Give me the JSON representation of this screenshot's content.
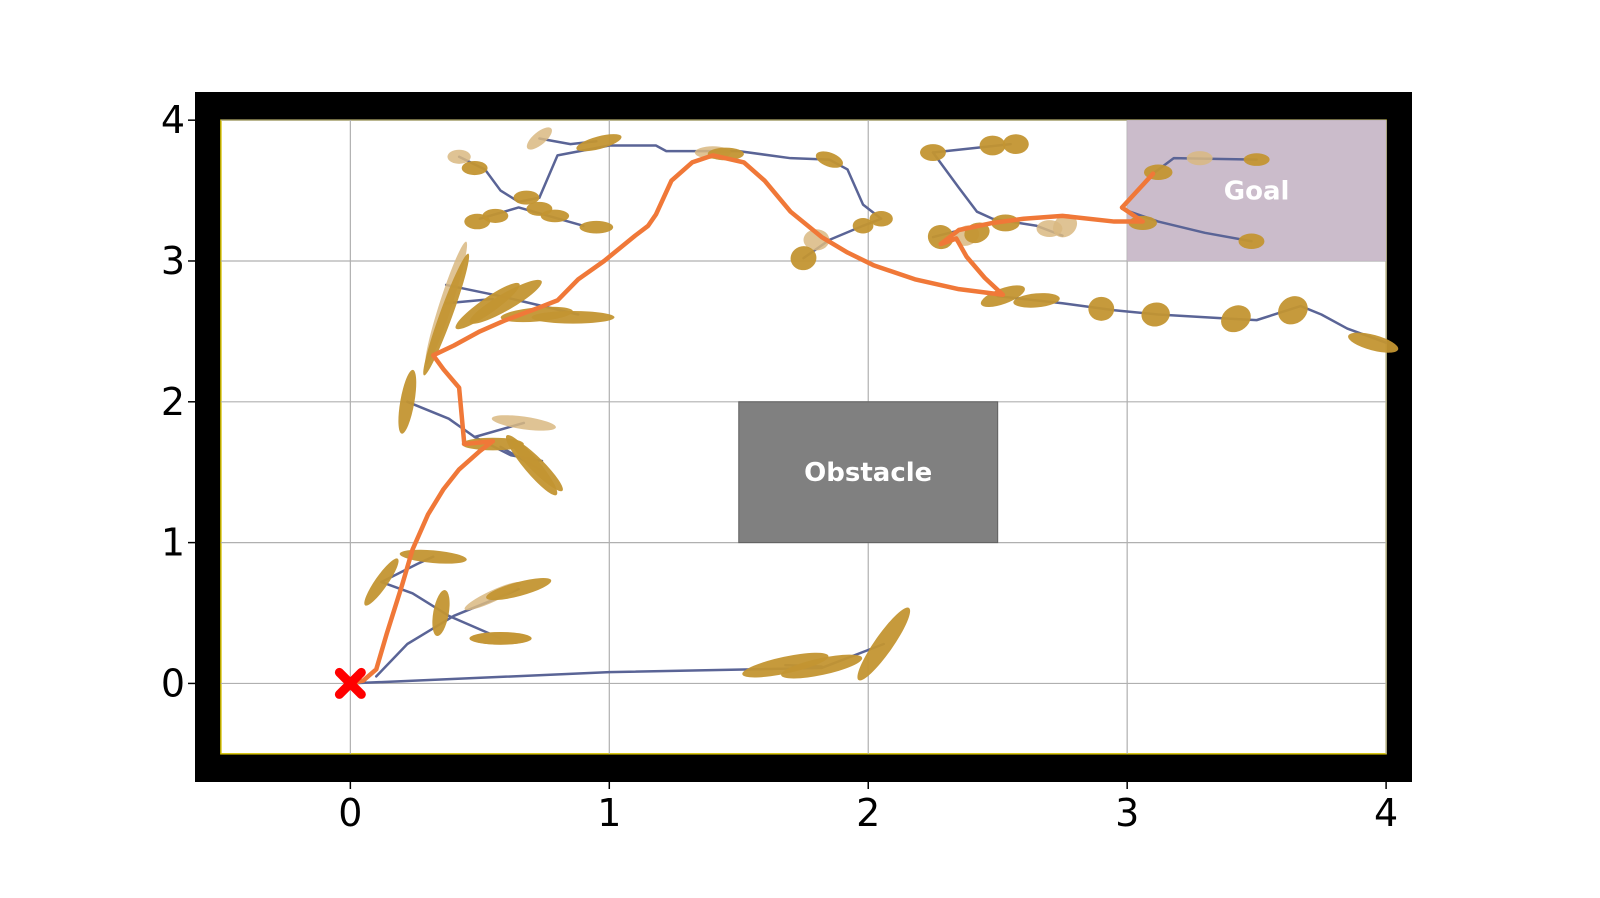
{
  "chart_data": {
    "type": "scatter",
    "title": "",
    "xlabel": "",
    "ylabel": "",
    "xlim": [
      -0.6,
      4.1
    ],
    "ylim": [
      -0.7,
      4.2
    ],
    "field_xlim": [
      -0.5,
      4.0
    ],
    "field_ylim": [
      -0.5,
      4.0
    ],
    "grid": true,
    "x_ticks": [
      0,
      1,
      2,
      3,
      4
    ],
    "y_ticks": [
      0,
      1,
      2,
      3,
      4
    ],
    "x_tick_labels": [
      "0",
      "1",
      "2",
      "3",
      "4"
    ],
    "y_tick_labels": [
      "0",
      "1",
      "2",
      "3",
      "4"
    ],
    "colors": {
      "border": "#000000",
      "field_edge": "#d4c000",
      "grid": "#b0b0b0",
      "tree_edge": "#5a6496",
      "path": "#f07838",
      "node": "#c39532",
      "node_light": "#d9b981",
      "start": "#ff0000",
      "obstacle": "#808080",
      "goal": "#c8b8c8"
    },
    "regions": [
      {
        "name": "obstacle",
        "label": "Obstacle",
        "x": [
          1.5,
          2.5
        ],
        "y": [
          1.0,
          2.0
        ]
      },
      {
        "name": "goal",
        "label": "Goal",
        "x": [
          3.0,
          4.0
        ],
        "y": [
          3.0,
          4.0
        ]
      }
    ],
    "start": {
      "x": 0,
      "y": 0,
      "marker": "X"
    },
    "tree_edges": [
      [
        [
          0.0,
          0.0
        ],
        [
          1.0,
          0.08
        ],
        [
          1.82,
          0.11
        ],
        [
          2.06,
          0.28
        ]
      ],
      [
        [
          1.68,
          0.13
        ],
        [
          1.82,
          0.12
        ]
      ],
      [
        [
          0.1,
          0.05
        ],
        [
          0.22,
          0.28
        ],
        [
          0.4,
          0.48
        ],
        [
          0.56,
          0.6
        ],
        [
          0.65,
          0.67
        ]
      ],
      [
        [
          0.12,
          0.72
        ],
        [
          0.26,
          0.85
        ],
        [
          0.32,
          0.9
        ]
      ],
      [
        [
          0.12,
          0.72
        ],
        [
          0.24,
          0.64
        ],
        [
          0.38,
          0.48
        ],
        [
          0.58,
          0.32
        ]
      ],
      [
        [
          0.22,
          2.0
        ],
        [
          0.38,
          1.88
        ],
        [
          0.48,
          1.75
        ],
        [
          0.67,
          1.85
        ]
      ],
      [
        [
          0.48,
          1.75
        ],
        [
          0.62,
          1.62
        ],
        [
          0.74,
          1.58
        ]
      ],
      [
        [
          0.58,
          1.68
        ],
        [
          0.73,
          1.52
        ]
      ],
      [
        [
          0.37,
          2.83
        ],
        [
          0.58,
          2.75
        ],
        [
          0.88,
          2.62
        ]
      ],
      [
        [
          0.37,
          2.7
        ],
        [
          0.55,
          2.73
        ]
      ],
      [
        [
          0.42,
          3.74
        ],
        [
          0.52,
          3.65
        ],
        [
          0.58,
          3.5
        ],
        [
          0.65,
          3.42
        ],
        [
          0.73,
          3.45
        ]
      ],
      [
        [
          0.5,
          3.3
        ],
        [
          0.65,
          3.38
        ],
        [
          0.9,
          3.25
        ]
      ],
      [
        [
          0.73,
          3.45
        ],
        [
          0.8,
          3.75
        ],
        [
          1.0,
          3.82
        ],
        [
          1.1,
          3.82
        ],
        [
          1.18,
          3.82
        ],
        [
          1.22,
          3.78
        ],
        [
          1.5,
          3.78
        ],
        [
          1.7,
          3.73
        ],
        [
          1.85,
          3.72
        ],
        [
          1.92,
          3.65
        ],
        [
          1.98,
          3.4
        ],
        [
          2.05,
          3.3
        ],
        [
          1.98,
          3.25
        ],
        [
          1.85,
          3.15
        ],
        [
          1.75,
          3.02
        ]
      ],
      [
        [
          0.73,
          3.87
        ],
        [
          0.85,
          3.83
        ],
        [
          0.95,
          3.85
        ]
      ],
      [
        [
          2.25,
          3.77
        ],
        [
          2.55,
          3.83
        ]
      ],
      [
        [
          2.25,
          3.77
        ],
        [
          2.35,
          3.52
        ],
        [
          2.42,
          3.35
        ],
        [
          2.48,
          3.3
        ],
        [
          2.65,
          3.25
        ],
        [
          2.75,
          3.18
        ]
      ],
      [
        [
          2.25,
          3.17
        ],
        [
          2.42,
          3.25
        ]
      ],
      [
        [
          2.5,
          2.75
        ],
        [
          2.6,
          2.73
        ],
        [
          2.75,
          2.7
        ],
        [
          2.95,
          2.65
        ],
        [
          3.12,
          2.62
        ],
        [
          3.4,
          2.59
        ],
        [
          3.5,
          2.58
        ],
        [
          3.67,
          2.68
        ],
        [
          3.75,
          2.62
        ],
        [
          3.85,
          2.52
        ],
        [
          4.0,
          2.42
        ]
      ],
      [
        [
          2.98,
          3.37
        ],
        [
          3.12,
          3.28
        ],
        [
          3.3,
          3.2
        ],
        [
          3.48,
          3.14
        ]
      ],
      [
        [
          3.1,
          3.62
        ],
        [
          3.18,
          3.73
        ],
        [
          3.5,
          3.72
        ]
      ]
    ],
    "solution_path": [
      [
        0.0,
        0.0
      ],
      [
        0.05,
        0.02
      ],
      [
        0.1,
        0.1
      ],
      [
        0.14,
        0.35
      ],
      [
        0.2,
        0.7
      ],
      [
        0.24,
        0.95
      ],
      [
        0.3,
        1.2
      ],
      [
        0.36,
        1.38
      ],
      [
        0.42,
        1.52
      ],
      [
        0.5,
        1.65
      ],
      [
        0.55,
        1.72
      ],
      [
        0.44,
        1.7
      ],
      [
        0.42,
        2.1
      ],
      [
        0.36,
        2.23
      ],
      [
        0.32,
        2.33
      ],
      [
        0.4,
        2.4
      ],
      [
        0.5,
        2.5
      ],
      [
        0.6,
        2.58
      ],
      [
        0.73,
        2.67
      ],
      [
        0.8,
        2.72
      ],
      [
        0.88,
        2.87
      ],
      [
        0.98,
        3.0
      ],
      [
        1.1,
        3.18
      ],
      [
        1.15,
        3.25
      ],
      [
        1.18,
        3.33
      ],
      [
        1.24,
        3.57
      ],
      [
        1.32,
        3.7
      ],
      [
        1.4,
        3.75
      ],
      [
        1.52,
        3.7
      ],
      [
        1.6,
        3.57
      ],
      [
        1.7,
        3.35
      ],
      [
        1.82,
        3.17
      ],
      [
        1.92,
        3.06
      ],
      [
        2.02,
        2.97
      ],
      [
        2.18,
        2.87
      ],
      [
        2.35,
        2.8
      ],
      [
        2.52,
        2.76
      ],
      [
        2.45,
        2.88
      ],
      [
        2.38,
        3.03
      ],
      [
        2.34,
        3.16
      ],
      [
        2.28,
        3.12
      ],
      [
        2.35,
        3.22
      ],
      [
        2.48,
        3.27
      ],
      [
        2.6,
        3.3
      ],
      [
        2.75,
        3.32
      ],
      [
        2.95,
        3.28
      ],
      [
        3.06,
        3.28
      ],
      [
        2.98,
        3.38
      ],
      [
        3.1,
        3.62
      ]
    ],
    "nodes": [
      {
        "x": 1.68,
        "y": 0.13,
        "w": 0.34,
        "h": 0.12,
        "angle": 12,
        "shade": "dark"
      },
      {
        "x": 1.82,
        "y": 0.12,
        "w": 0.32,
        "h": 0.12,
        "angle": 12,
        "shade": "dark"
      },
      {
        "x": 2.06,
        "y": 0.28,
        "w": 0.34,
        "h": 0.13,
        "angle": 55,
        "shade": "dark"
      },
      {
        "x": 0.58,
        "y": 0.32,
        "w": 0.24,
        "h": 0.09,
        "angle": 0,
        "shade": "light"
      },
      {
        "x": 0.58,
        "y": 0.32,
        "w": 0.24,
        "h": 0.09,
        "angle": 0,
        "shade": "dark"
      },
      {
        "x": 0.35,
        "y": 0.5,
        "w": 0.18,
        "h": 0.11,
        "angle": 80,
        "shade": "dark"
      },
      {
        "x": 0.55,
        "y": 0.62,
        "w": 0.24,
        "h": 0.08,
        "angle": 25,
        "shade": "light"
      },
      {
        "x": 0.65,
        "y": 0.67,
        "w": 0.26,
        "h": 0.1,
        "angle": 15,
        "shade": "dark"
      },
      {
        "x": 0.32,
        "y": 0.9,
        "w": 0.26,
        "h": 0.09,
        "angle": -5,
        "shade": "dark"
      },
      {
        "x": 0.12,
        "y": 0.72,
        "w": 0.22,
        "h": 0.09,
        "angle": 55,
        "shade": "dark"
      },
      {
        "x": 0.22,
        "y": 2.0,
        "w": 0.25,
        "h": 0.1,
        "angle": 80,
        "shade": "dark"
      },
      {
        "x": 0.67,
        "y": 1.85,
        "w": 0.25,
        "h": 0.09,
        "angle": -8,
        "shade": "light"
      },
      {
        "x": 0.55,
        "y": 1.7,
        "w": 0.24,
        "h": 0.09,
        "angle": 0,
        "shade": "dark"
      },
      {
        "x": 0.72,
        "y": 1.55,
        "w": 0.28,
        "h": 0.1,
        "angle": -45,
        "shade": "dark"
      },
      {
        "x": 0.7,
        "y": 1.55,
        "w": 0.3,
        "h": 0.11,
        "angle": -50,
        "shade": "dark"
      },
      {
        "x": 0.37,
        "y": 2.7,
        "w": 0.5,
        "h": 0.09,
        "angle": 72,
        "shade": "light"
      },
      {
        "x": 0.37,
        "y": 2.62,
        "w": 0.5,
        "h": 0.09,
        "angle": 70,
        "shade": "dark"
      },
      {
        "x": 0.53,
        "y": 2.68,
        "w": 0.3,
        "h": 0.11,
        "angle": 35,
        "shade": "dark"
      },
      {
        "x": 0.6,
        "y": 2.71,
        "w": 0.32,
        "h": 0.12,
        "angle": 30,
        "shade": "dark"
      },
      {
        "x": 0.72,
        "y": 2.62,
        "w": 0.28,
        "h": 0.1,
        "angle": 5,
        "shade": "dark"
      },
      {
        "x": 0.86,
        "y": 2.6,
        "w": 0.32,
        "h": 0.09,
        "angle": 0,
        "shade": "dark"
      },
      {
        "x": 0.42,
        "y": 3.74,
        "w": 0.09,
        "h": 0.1,
        "angle": 0,
        "shade": "light"
      },
      {
        "x": 0.48,
        "y": 3.66,
        "w": 0.1,
        "h": 0.1,
        "angle": 0,
        "shade": "dark"
      },
      {
        "x": 0.49,
        "y": 3.28,
        "w": 0.1,
        "h": 0.11,
        "angle": 0,
        "shade": "dark"
      },
      {
        "x": 0.56,
        "y": 3.32,
        "w": 0.1,
        "h": 0.1,
        "angle": 0,
        "shade": "dark"
      },
      {
        "x": 0.68,
        "y": 3.45,
        "w": 0.1,
        "h": 0.1,
        "angle": 0,
        "shade": "dark"
      },
      {
        "x": 0.73,
        "y": 3.37,
        "w": 0.1,
        "h": 0.1,
        "angle": 0,
        "shade": "dark"
      },
      {
        "x": 0.79,
        "y": 3.32,
        "w": 0.11,
        "h": 0.09,
        "angle": 0,
        "shade": "dark"
      },
      {
        "x": 0.95,
        "y": 3.24,
        "w": 0.13,
        "h": 0.09,
        "angle": 0,
        "shade": "dark"
      },
      {
        "x": 0.73,
        "y": 3.87,
        "w": 0.12,
        "h": 0.09,
        "angle": 40,
        "shade": "light"
      },
      {
        "x": 0.96,
        "y": 3.84,
        "w": 0.18,
        "h": 0.09,
        "angle": 15,
        "shade": "dark"
      },
      {
        "x": 1.4,
        "y": 3.77,
        "w": 0.14,
        "h": 0.09,
        "angle": 0,
        "shade": "light"
      },
      {
        "x": 1.45,
        "y": 3.76,
        "w": 0.14,
        "h": 0.09,
        "angle": 0,
        "shade": "dark"
      },
      {
        "x": 1.85,
        "y": 3.72,
        "w": 0.11,
        "h": 0.1,
        "angle": -20,
        "shade": "dark"
      },
      {
        "x": 1.98,
        "y": 3.25,
        "w": 0.08,
        "h": 0.11,
        "angle": 0,
        "shade": "dark"
      },
      {
        "x": 2.05,
        "y": 3.3,
        "w": 0.09,
        "h": 0.11,
        "angle": 0,
        "shade": "dark"
      },
      {
        "x": 1.8,
        "y": 3.15,
        "w": 0.1,
        "h": 0.15,
        "angle": 0,
        "shade": "light"
      },
      {
        "x": 1.75,
        "y": 3.02,
        "w": 0.1,
        "h": 0.17,
        "angle": 10,
        "shade": "dark"
      },
      {
        "x": 2.25,
        "y": 3.77,
        "w": 0.1,
        "h": 0.12,
        "angle": 0,
        "shade": "dark"
      },
      {
        "x": 2.48,
        "y": 3.82,
        "w": 0.1,
        "h": 0.14,
        "angle": 0,
        "shade": "dark"
      },
      {
        "x": 2.57,
        "y": 3.83,
        "w": 0.1,
        "h": 0.14,
        "angle": 0,
        "shade": "dark"
      },
      {
        "x": 2.28,
        "y": 3.17,
        "w": 0.1,
        "h": 0.17,
        "angle": -15,
        "shade": "dark"
      },
      {
        "x": 2.38,
        "y": 3.18,
        "w": 0.1,
        "h": 0.14,
        "angle": 20,
        "shade": "light"
      },
      {
        "x": 2.42,
        "y": 3.2,
        "w": 0.1,
        "h": 0.14,
        "angle": 20,
        "shade": "dark"
      },
      {
        "x": 2.53,
        "y": 3.27,
        "w": 0.11,
        "h": 0.12,
        "angle": 0,
        "shade": "dark"
      },
      {
        "x": 2.7,
        "y": 3.23,
        "w": 0.1,
        "h": 0.12,
        "angle": 0,
        "shade": "light"
      },
      {
        "x": 2.76,
        "y": 3.25,
        "w": 0.1,
        "h": 0.15,
        "angle": 40,
        "shade": "light"
      },
      {
        "x": 2.52,
        "y": 2.75,
        "w": 0.18,
        "h": 0.11,
        "angle": 20,
        "shade": "dark"
      },
      {
        "x": 2.65,
        "y": 2.72,
        "w": 0.18,
        "h": 0.1,
        "angle": 5,
        "shade": "dark"
      },
      {
        "x": 2.9,
        "y": 2.66,
        "w": 0.1,
        "h": 0.17,
        "angle": 0,
        "shade": "dark"
      },
      {
        "x": 3.11,
        "y": 2.62,
        "w": 0.11,
        "h": 0.17,
        "angle": 10,
        "shade": "dark"
      },
      {
        "x": 3.42,
        "y": 2.59,
        "w": 0.12,
        "h": 0.18,
        "angle": 30,
        "shade": "dark"
      },
      {
        "x": 3.64,
        "y": 2.65,
        "w": 0.12,
        "h": 0.19,
        "angle": 35,
        "shade": "dark"
      },
      {
        "x": 3.95,
        "y": 2.42,
        "w": 0.2,
        "h": 0.11,
        "angle": -15,
        "shade": "dark"
      },
      {
        "x": 3.06,
        "y": 3.27,
        "w": 0.11,
        "h": 0.1,
        "angle": 0,
        "shade": "dark"
      },
      {
        "x": 3.48,
        "y": 3.14,
        "w": 0.1,
        "h": 0.11,
        "angle": 0,
        "shade": "dark"
      },
      {
        "x": 3.12,
        "y": 3.63,
        "w": 0.11,
        "h": 0.11,
        "angle": 0,
        "shade": "dark"
      },
      {
        "x": 3.28,
        "y": 3.73,
        "w": 0.1,
        "h": 0.1,
        "angle": 0,
        "shade": "light"
      },
      {
        "x": 3.5,
        "y": 3.72,
        "w": 0.1,
        "h": 0.09,
        "angle": 0,
        "shade": "dark"
      }
    ]
  }
}
